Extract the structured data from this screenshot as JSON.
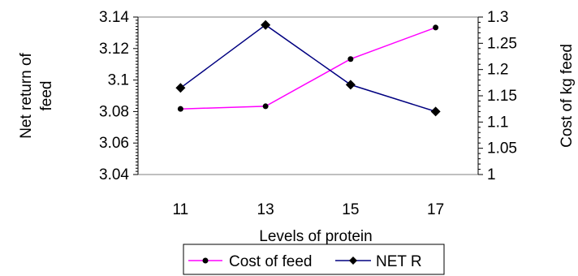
{
  "chart_data": {
    "type": "line",
    "categories": [
      "11",
      "13",
      "15",
      "17"
    ],
    "xlabel": "Levels of protein",
    "ylabel_left": "Net return of feed",
    "ylabel_left_lines": [
      "Net return of",
      "feed"
    ],
    "ylabel_right": "Cost of kg feed",
    "ylim_left": [
      3.04,
      3.14
    ],
    "yticks_left": [
      "3.14",
      "3.12",
      "3.1",
      "3.08",
      "3.06",
      "3.04"
    ],
    "ylim_right": [
      1.0,
      1.3
    ],
    "yticks_right": [
      "1.3",
      "1.25",
      "1.2",
      "1.15",
      "1.1",
      "1.05",
      "1"
    ],
    "grid": false,
    "legend_position": "bottom",
    "series": [
      {
        "name": "Cost of feed",
        "axis": "right",
        "color": "#FF00FF",
        "marker": "circle",
        "values": [
          1.125,
          1.13,
          1.22,
          1.28
        ]
      },
      {
        "name": "NET R",
        "axis": "left",
        "color": "#000080",
        "marker": "diamond",
        "values": [
          3.095,
          3.135,
          3.097,
          3.08
        ]
      }
    ]
  }
}
